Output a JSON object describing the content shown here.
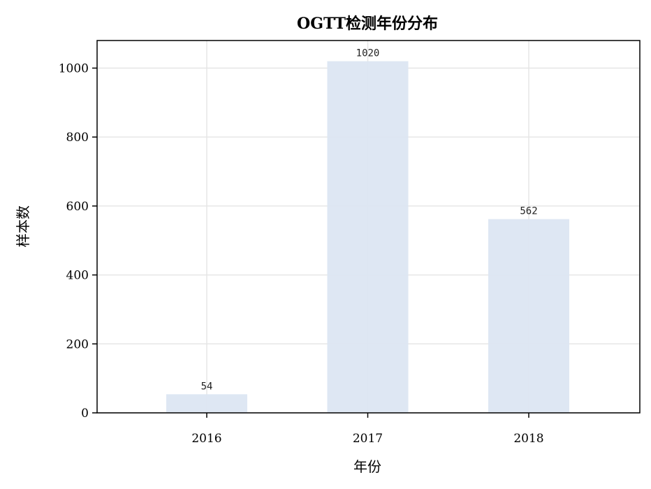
{
  "chart_data": {
    "type": "bar",
    "title": "OGTT检测年份分布",
    "xlabel": "年份",
    "ylabel": "样本数",
    "categories": [
      "2016",
      "2017",
      "2018"
    ],
    "values": [
      54,
      1020,
      562
    ],
    "data_labels": [
      "54",
      "1020",
      "562"
    ],
    "ylim": [
      0,
      1080
    ],
    "yticks": [
      0,
      200,
      400,
      600,
      800,
      1000
    ],
    "ytick_labels": [
      "0",
      "200",
      "400",
      "600",
      "800",
      "1000"
    ],
    "grid": true,
    "bar_color": "#dce6f2"
  }
}
